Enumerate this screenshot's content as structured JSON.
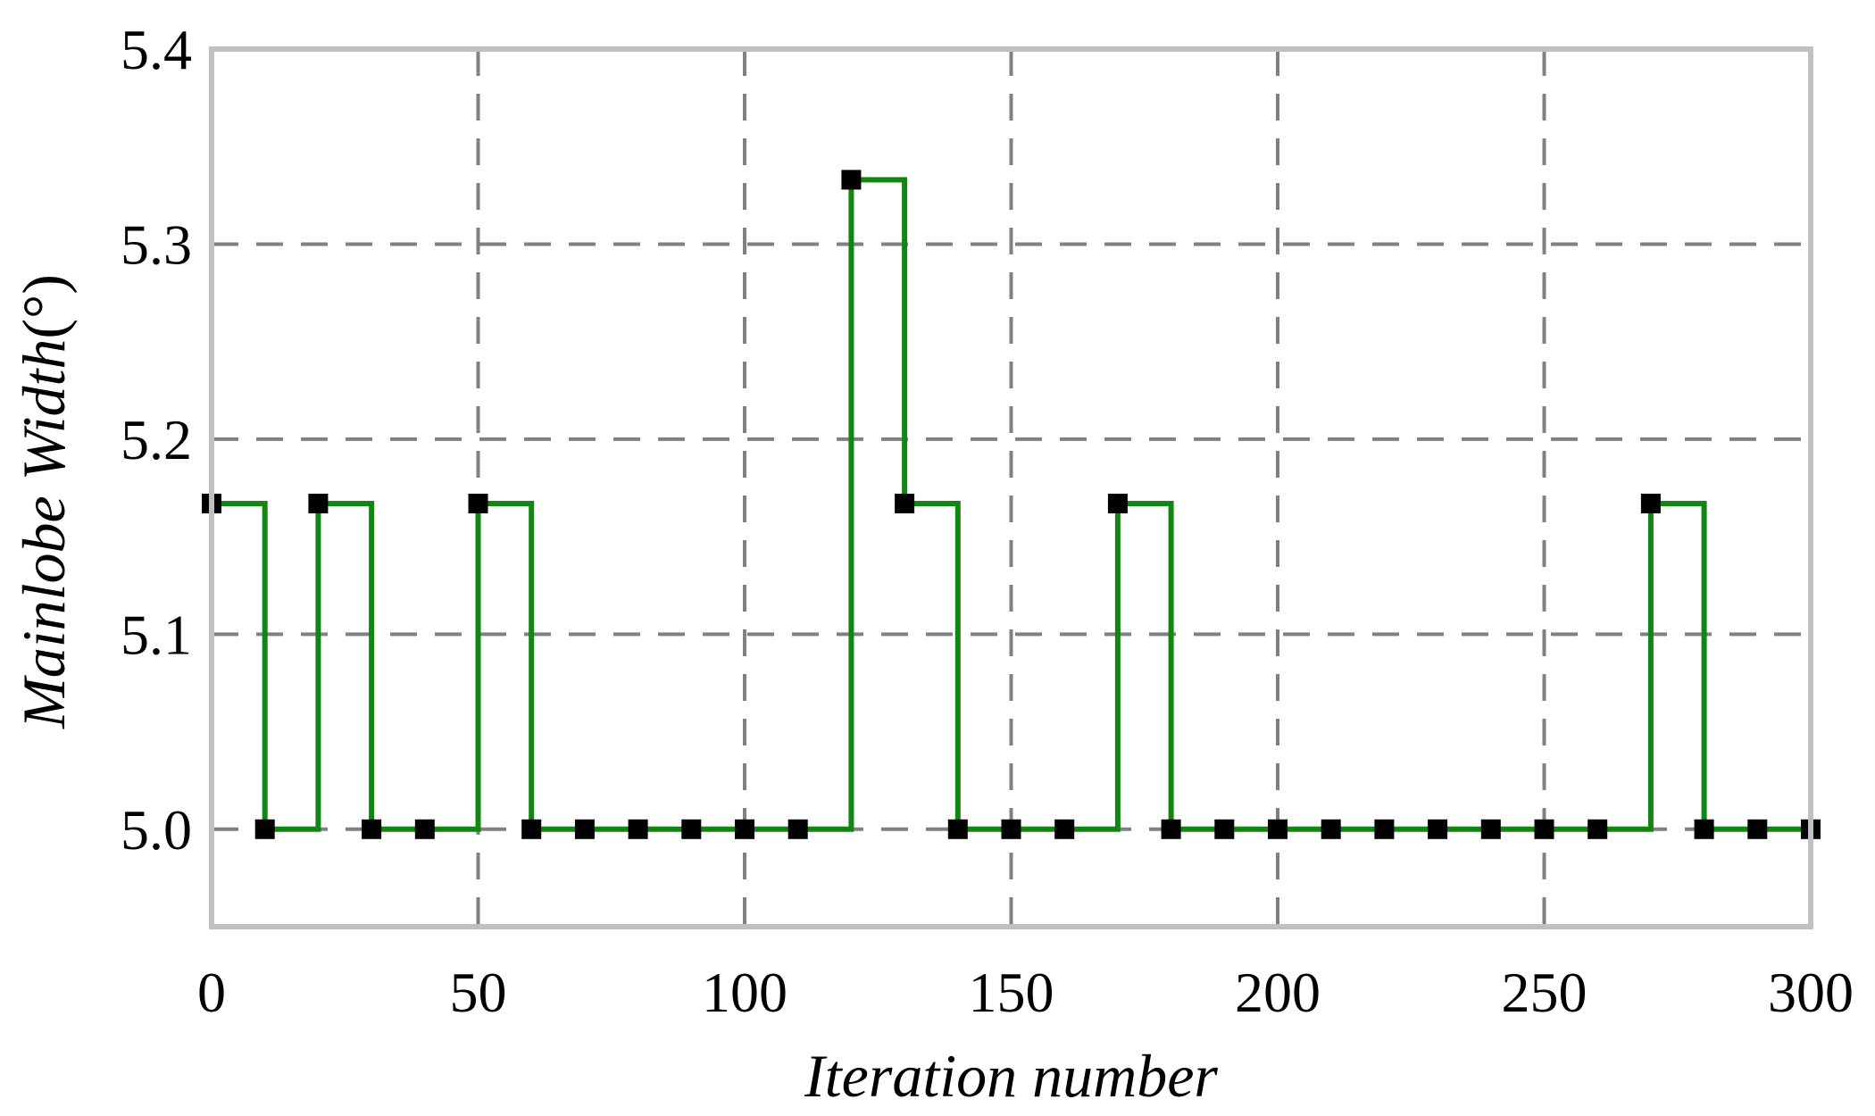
{
  "chart_data": {
    "type": "line",
    "step": "post",
    "title": "",
    "xlabel": "Iteration number",
    "ylabel_main": "Mainlobe Width",
    "ylabel_unit": "(°)",
    "xlim": [
      0,
      300
    ],
    "ylim": [
      4.95,
      5.4
    ],
    "xticks": [
      0,
      50,
      100,
      150,
      200,
      250,
      300
    ],
    "xtick_labels": [
      "0",
      "50",
      "100",
      "150",
      "200",
      "250",
      "300"
    ],
    "yticks": [
      5.0,
      5.1,
      5.2,
      5.3,
      5.4
    ],
    "ytick_labels": [
      "5.0",
      "5.1",
      "5.2",
      "5.3",
      "5.4"
    ],
    "grid": true,
    "colors": {
      "line": "#138513",
      "marker": "#000000",
      "grid": "#808080",
      "frame": "#c0c0c0"
    },
    "series": [
      {
        "x": [
          0,
          10,
          20,
          30,
          40,
          50,
          60,
          70,
          80,
          90,
          100,
          110,
          120,
          130,
          140,
          150,
          160,
          170,
          180,
          190,
          200,
          210,
          220,
          230,
          240,
          250,
          260,
          270,
          280,
          290,
          300
        ],
        "y": [
          5.167,
          5.0,
          5.167,
          5.0,
          5.0,
          5.167,
          5.0,
          5.0,
          5.0,
          5.0,
          5.0,
          5.0,
          5.333,
          5.167,
          5.0,
          5.0,
          5.0,
          5.167,
          5.0,
          5.0,
          5.0,
          5.0,
          5.0,
          5.0,
          5.0,
          5.0,
          5.0,
          5.167,
          5.0,
          5.0,
          5.0
        ]
      }
    ]
  }
}
